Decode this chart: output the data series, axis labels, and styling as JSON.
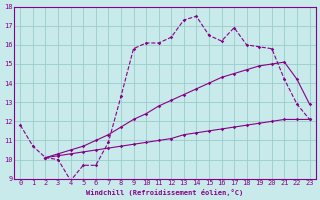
{
  "x_all": [
    0,
    1,
    2,
    3,
    4,
    5,
    6,
    7,
    8,
    9,
    10,
    11,
    12,
    13,
    14,
    15,
    16,
    17,
    18,
    19,
    20,
    21,
    22,
    23
  ],
  "line1_y": [
    11.8,
    10.7,
    10.1,
    10.0,
    8.9,
    9.7,
    9.7,
    10.9,
    13.3,
    15.8,
    16.1,
    16.1,
    16.4,
    17.3,
    17.5,
    16.5,
    16.2,
    16.9,
    16.0,
    15.9,
    15.8,
    14.2,
    12.9,
    12.1
  ],
  "line1_style": "--",
  "line2_x": [
    2,
    3,
    4,
    5,
    6,
    7,
    8,
    9,
    10,
    11,
    12,
    13,
    14,
    15,
    16,
    17,
    18,
    19,
    20,
    21,
    22,
    23
  ],
  "line2_y": [
    10.1,
    10.3,
    10.5,
    10.7,
    11.0,
    11.3,
    11.7,
    12.1,
    12.4,
    12.8,
    13.1,
    13.4,
    13.7,
    14.0,
    14.3,
    14.5,
    14.7,
    14.9,
    15.0,
    15.1,
    14.2,
    12.9
  ],
  "line2_style": "-",
  "line3_x": [
    2,
    3,
    4,
    5,
    6,
    7,
    8,
    9,
    10,
    11,
    12,
    13,
    14,
    15,
    16,
    17,
    18,
    19,
    20,
    21,
    22,
    23
  ],
  "line3_y": [
    10.1,
    10.2,
    10.3,
    10.4,
    10.5,
    10.6,
    10.7,
    10.8,
    10.9,
    11.0,
    11.1,
    11.3,
    11.4,
    11.5,
    11.6,
    11.7,
    11.8,
    11.9,
    12.0,
    12.1,
    12.1,
    12.1
  ],
  "line3_style": "-",
  "color": "#880088",
  "bg_color": "#c8eaea",
  "grid_color": "#99cccc",
  "xlim": [
    -0.5,
    23.5
  ],
  "ylim": [
    9,
    18
  ],
  "yticks": [
    9,
    10,
    11,
    12,
    13,
    14,
    15,
    16,
    17,
    18
  ],
  "xticks": [
    0,
    1,
    2,
    3,
    4,
    5,
    6,
    7,
    8,
    9,
    10,
    11,
    12,
    13,
    14,
    15,
    16,
    17,
    18,
    19,
    20,
    21,
    22,
    23
  ],
  "xlabel": "Windchill (Refroidissement éolien,°C)"
}
